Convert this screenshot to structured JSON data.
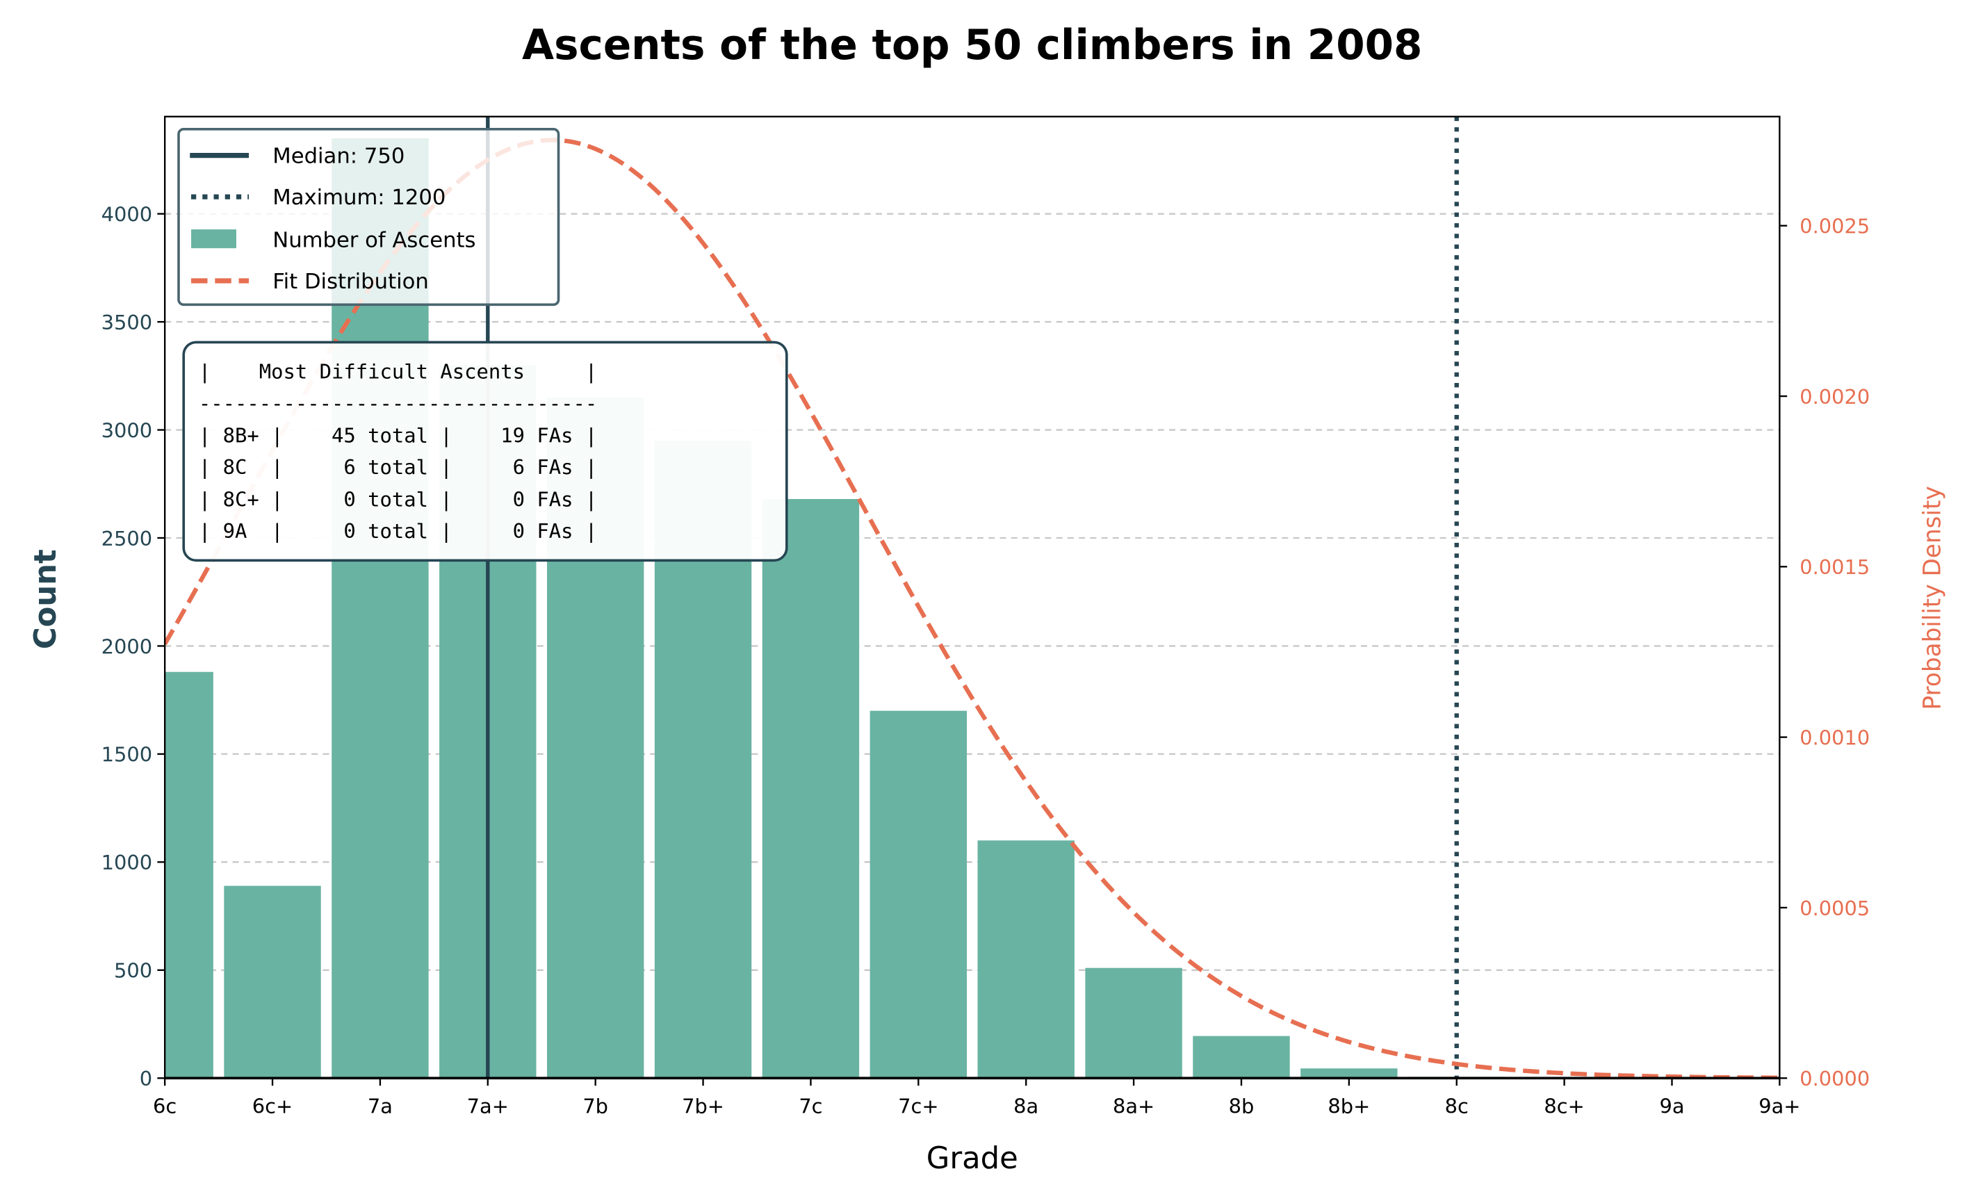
{
  "chart_data": {
    "type": "bar",
    "title": "Ascents of the top 50 climbers in 2008",
    "xlabel": "Grade",
    "ylabel": "Count",
    "ylabel_right": "Probability Density",
    "categories": [
      "6c",
      "6c+",
      "7a",
      "7a+",
      "7b",
      "7b+",
      "7c",
      "7c+",
      "8a",
      "8a+",
      "8b",
      "8b+",
      "8c",
      "8c+",
      "9a",
      "9a+"
    ],
    "series": [
      {
        "name": "Number of Ascents",
        "values": [
          1880,
          890,
          4350,
          3300,
          3150,
          2950,
          2680,
          1700,
          1100,
          510,
          195,
          45,
          6,
          0,
          0,
          0
        ]
      }
    ],
    "ylim": [
      0,
      4450
    ],
    "yticks": [
      "0",
      "500",
      "1000",
      "1500",
      "2000",
      "2500",
      "3000",
      "3500",
      "4000"
    ],
    "ylim_right": [
      0,
      0.00282
    ],
    "yticks_right": [
      "0.0000",
      "0.0005",
      "0.0010",
      "0.0015",
      "0.0020",
      "0.0025"
    ],
    "fit_distribution": {
      "name": "Fit Distribution",
      "type": "normal",
      "mean": 780,
      "std": 145
    },
    "reference_lines": [
      {
        "name": "Median: 750",
        "value": 750,
        "grade": "7a+",
        "style": "solid"
      },
      {
        "name": "Maximum: 1200",
        "value": 1200,
        "grade": "8c",
        "style": "dotted"
      }
    ],
    "grid": "y-dashed",
    "legend_placement": "top-left",
    "colors": {
      "bars": "#69b3a2",
      "lines": "#264653",
      "fit": "#e76f51",
      "grid": "#c8c8c8"
    }
  },
  "textbox": {
    "lines": [
      "|    Most Difficult Ascents     |",
      "---------------------------------",
      "| 8B+ |    45 total |    19 FAs |",
      "| 8C  |     6 total |     6 FAs |",
      "| 8C+ |     0 total |     0 FAs |",
      "| 9A  |     0 total |     0 FAs |"
    ]
  },
  "legend": {
    "median": "Median: 750",
    "maximum": "Maximum: 1200",
    "bars": "Number of Ascents",
    "fit": "Fit Distribution"
  }
}
